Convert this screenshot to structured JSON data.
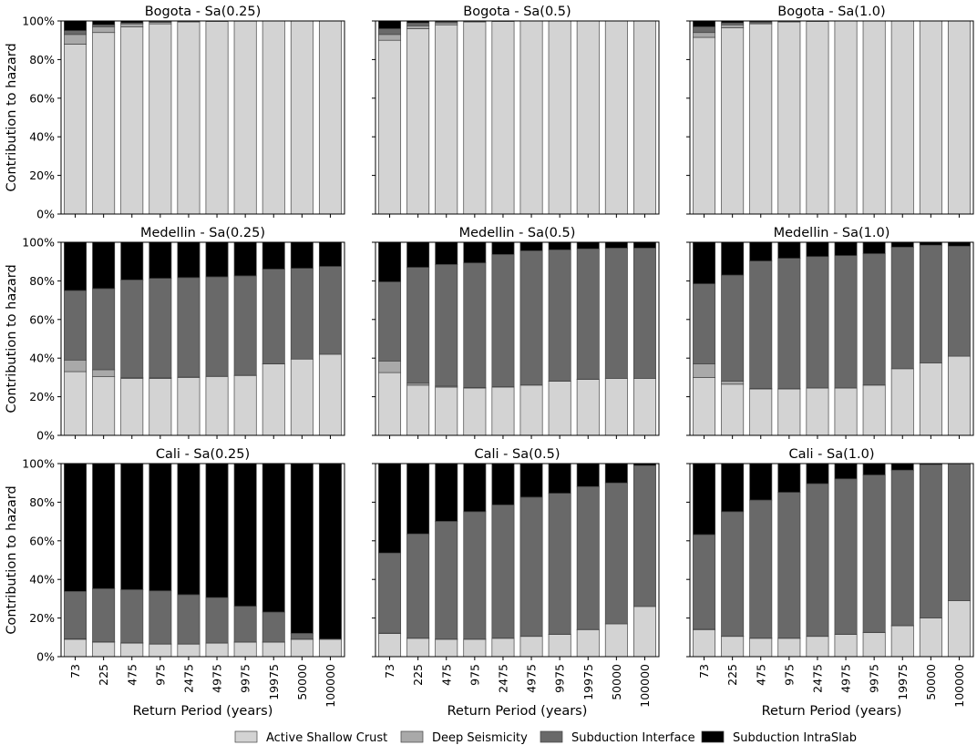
{
  "chart_data": {
    "type": "bar",
    "stacked": true,
    "grid": false,
    "legend_position": "bottom",
    "xlabel": "Return Period (years)",
    "ylabel": "Contribution to hazard",
    "ylim": [
      0,
      100
    ],
    "yticks": [
      "0%",
      "20%",
      "40%",
      "60%",
      "80%",
      "100%"
    ],
    "categories": [
      "73",
      "225",
      "475",
      "975",
      "2475",
      "4975",
      "9975",
      "19975",
      "50000",
      "100000"
    ],
    "series_names": [
      "Active Shallow Crust",
      "Deep Seismicity",
      "Subduction Interface",
      "Subduction IntraSlab"
    ],
    "series_colors": [
      "#d3d3d3",
      "#a9a9a9",
      "#696969",
      "#000000"
    ],
    "panels": [
      {
        "title": "Bogota - Sa(0.25)",
        "series": [
          {
            "name": "Active Shallow Crust",
            "values": [
              88,
              94,
              97,
              98.5,
              99.5,
              99.8,
              99.9,
              100,
              100,
              100
            ]
          },
          {
            "name": "Deep Seismicity",
            "values": [
              5,
              3,
              1.5,
              0.8,
              0.3,
              0.1,
              0.1,
              0,
              0,
              0
            ]
          },
          {
            "name": "Subduction Interface",
            "values": [
              2,
              1,
              0.5,
              0.4,
              0.1,
              0.1,
              0,
              0,
              0,
              0
            ]
          },
          {
            "name": "Subduction IntraSlab",
            "values": [
              5,
              2,
              1,
              0.3,
              0.1,
              0,
              0,
              0,
              0,
              0
            ]
          }
        ]
      },
      {
        "title": "Bogota - Sa(0.5)",
        "series": [
          {
            "name": "Active Shallow Crust",
            "values": [
              90,
              96,
              98,
              99.5,
              99.8,
              100,
              100,
              100,
              100,
              100
            ]
          },
          {
            "name": "Deep Seismicity",
            "values": [
              3,
              1.5,
              1,
              0.3,
              0.1,
              0,
              0,
              0,
              0,
              0
            ]
          },
          {
            "name": "Subduction Interface",
            "values": [
              3,
              1.5,
              0.5,
              0.1,
              0.1,
              0,
              0,
              0,
              0,
              0
            ]
          },
          {
            "name": "Subduction IntraSlab",
            "values": [
              4,
              1,
              0.5,
              0.1,
              0,
              0,
              0,
              0,
              0,
              0
            ]
          }
        ]
      },
      {
        "title": "Bogota - Sa(1.0)",
        "series": [
          {
            "name": "Active Shallow Crust",
            "values": [
              91.5,
              96.5,
              98.5,
              99.5,
              99.8,
              100,
              100,
              100,
              100,
              100
            ]
          },
          {
            "name": "Deep Seismicity",
            "values": [
              2.5,
              1.5,
              0.5,
              0.2,
              0.1,
              0,
              0,
              0,
              0,
              0
            ]
          },
          {
            "name": "Subduction Interface",
            "values": [
              3,
              1,
              0.5,
              0.2,
              0.1,
              0,
              0,
              0,
              0,
              0
            ]
          },
          {
            "name": "Subduction IntraSlab",
            "values": [
              3,
              1,
              0.5,
              0.1,
              0,
              0,
              0,
              0,
              0,
              0
            ]
          }
        ]
      },
      {
        "title": "Medellin - Sa(0.25)",
        "series": [
          {
            "name": "Active Shallow Crust",
            "values": [
              33,
              30.5,
              29.5,
              29.5,
              30,
              30.5,
              31,
              37,
              39.5,
              42
            ]
          },
          {
            "name": "Deep Seismicity",
            "values": [
              6,
              3.5,
              0.5,
              0.3,
              0.2,
              0.1,
              0.1,
              0.1,
              0,
              0
            ]
          },
          {
            "name": "Subduction Interface",
            "values": [
              36,
              42,
              50.5,
              51.5,
              51.5,
              51.5,
              51.5,
              49,
              47,
              45.5
            ]
          },
          {
            "name": "Subduction IntraSlab",
            "values": [
              25,
              24,
              19.5,
              18.7,
              18.3,
              17.9,
              17.4,
              13.9,
              13.5,
              12.5
            ]
          }
        ]
      },
      {
        "title": "Medellin - Sa(0.5)",
        "series": [
          {
            "name": "Active Shallow Crust",
            "values": [
              32.5,
              26,
              25,
              24.5,
              25,
              26,
              28,
              29,
              29.5,
              29.5
            ]
          },
          {
            "name": "Deep Seismicity",
            "values": [
              6,
              1,
              0.5,
              0.3,
              0.2,
              0.1,
              0.1,
              0.1,
              0,
              0
            ]
          },
          {
            "name": "Subduction Interface",
            "values": [
              41,
              60,
              63,
              64.5,
              68.5,
              69.5,
              68,
              67.5,
              67.5,
              67.5
            ]
          },
          {
            "name": "Subduction IntraSlab",
            "values": [
              20.5,
              13,
              11.5,
              10.7,
              6.3,
              4.4,
              3.9,
              3.4,
              3,
              3
            ]
          }
        ]
      },
      {
        "title": "Medellin - Sa(1.0)",
        "series": [
          {
            "name": "Active Shallow Crust",
            "values": [
              30,
              26.5,
              24,
              24,
              24.5,
              24.5,
              26,
              34.5,
              37.5,
              41
            ]
          },
          {
            "name": "Deep Seismicity",
            "values": [
              7,
              1.5,
              0.3,
              0.2,
              0.1,
              0.1,
              0.1,
              0,
              0,
              0
            ]
          },
          {
            "name": "Subduction Interface",
            "values": [
              41.5,
              55,
              66,
              67.5,
              68,
              68.5,
              68,
              63,
              61,
              57
            ]
          },
          {
            "name": "Subduction IntraSlab",
            "values": [
              21.5,
              17,
              9.7,
              8.3,
              7.4,
              6.9,
              5.9,
              2.5,
              1.5,
              2
            ]
          }
        ]
      },
      {
        "title": "Cali - Sa(0.25)",
        "series": [
          {
            "name": "Active Shallow Crust",
            "values": [
              9,
              7.5,
              7,
              6.5,
              6.5,
              7,
              7.5,
              7.5,
              9,
              9
            ]
          },
          {
            "name": "Deep Seismicity",
            "values": [
              0.3,
              0.2,
              0.2,
              0.1,
              0.1,
              0.1,
              0.1,
              0.1,
              0.1,
              0.1
            ]
          },
          {
            "name": "Subduction Interface",
            "values": [
              24.5,
              27.5,
              27.5,
              27.5,
              25.5,
              23.5,
              18.5,
              15.5,
              3,
              0
            ]
          },
          {
            "name": "Subduction IntraSlab",
            "values": [
              66.2,
              64.8,
              65.3,
              65.9,
              67.9,
              69.4,
              73.9,
              76.9,
              87.9,
              90.9
            ]
          }
        ]
      },
      {
        "title": "Cali - Sa(0.5)",
        "series": [
          {
            "name": "Active Shallow Crust",
            "values": [
              12,
              9.5,
              9,
              9,
              9.5,
              10.5,
              11.5,
              14,
              17,
              26
            ]
          },
          {
            "name": "Deep Seismicity",
            "values": [
              0.2,
              0.1,
              0.1,
              0.1,
              0.1,
              0.1,
              0.1,
              0.1,
              0,
              0
            ]
          },
          {
            "name": "Subduction Interface",
            "values": [
              41.5,
              54,
              61,
              66,
              69,
              72,
              73,
              74,
              73,
              73
            ]
          },
          {
            "name": "Subduction IntraSlab",
            "values": [
              46.3,
              36.4,
              29.9,
              24.9,
              21.4,
              17.4,
              15.4,
              11.9,
              10,
              1
            ]
          }
        ]
      },
      {
        "title": "Cali - Sa(1.0)",
        "series": [
          {
            "name": "Active Shallow Crust",
            "values": [
              14,
              10.5,
              9.5,
              9.5,
              10.5,
              11.5,
              12.5,
              16,
              20,
              29
            ]
          },
          {
            "name": "Deep Seismicity",
            "values": [
              0.2,
              0.1,
              0.1,
              0.1,
              0.1,
              0.1,
              0.1,
              0.1,
              0,
              0
            ]
          },
          {
            "name": "Subduction Interface",
            "values": [
              49,
              64.5,
              71.5,
              75.5,
              79,
              80.5,
              81.5,
              80.5,
              79.5,
              71
            ]
          },
          {
            "name": "Subduction IntraSlab",
            "values": [
              36.8,
              24.9,
              18.9,
              14.9,
              10.4,
              7.9,
              5.9,
              3.4,
              0.5,
              0
            ]
          }
        ]
      }
    ]
  }
}
